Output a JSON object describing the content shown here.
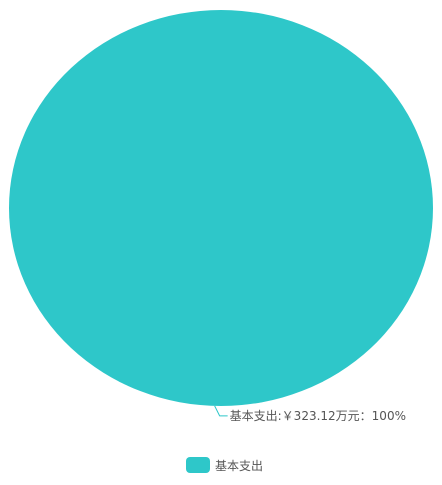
{
  "chart_data": {
    "type": "pie",
    "slices": [
      {
        "name": "基本支出",
        "value": 323.12,
        "percent": 100,
        "label": "基本支出:￥323.12万元：100%",
        "color": "#2ec7c9"
      }
    ],
    "legend": {
      "placement": "bottom-center",
      "items": [
        "基本支出"
      ]
    }
  }
}
